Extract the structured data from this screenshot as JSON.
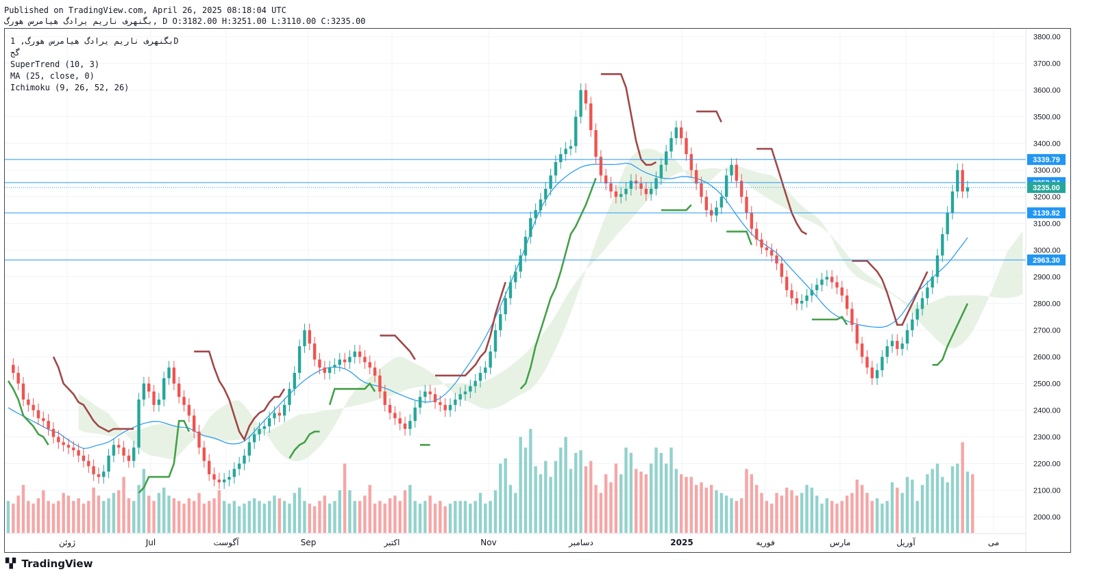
{
  "header": {
    "published": "Published on TradingView.com, April 26, 2025 08:18:04 UTC",
    "ohlc": "بگنهرف ناریم یرادگ هیامرس هورگ, D O:3182.00 H:3251.00 L:3110.00 C:3235.00"
  },
  "legend": {
    "symbol": "بگنهرف ناریم یرادگ هیامرس هورگ, 1D",
    "sub": "گج",
    "ind1": "SuperTrend (10, 3)",
    "ind2": "MA (25, close, 0)",
    "ind3": "Ichimoku (9, 26, 52, 26)"
  },
  "brand": {
    "name": "TradingView",
    "icon": "tradingview-logo-icon"
  },
  "colors": {
    "up": "#26a69a",
    "down": "#ef5350",
    "volUp": "#92d2cc",
    "volDown": "#f5a6a6",
    "supertrendUp": "#43a047",
    "supertrendDown": "#a04646",
    "ma": "#2196f3",
    "hline": "#2196f3",
    "cloudGreen": "#e4f1e1",
    "cloudRed": "#fde3e3"
  },
  "chart_data": {
    "type": "candlestick",
    "title": "",
    "yaxis": {
      "ticks": [
        2000,
        2100,
        2200,
        2300,
        2400,
        2500,
        2600,
        2700,
        2800,
        2900,
        3000,
        3100,
        3200,
        3300,
        3400,
        3500,
        3600,
        3700,
        3800
      ],
      "range": [
        1940,
        3830
      ]
    },
    "xaxis": {
      "labels": [
        "ژوئن",
        "Jul",
        "آگوست",
        "Sep",
        "اکتبر",
        "Nov",
        "دسامبر",
        "2025",
        "فوریه",
        "مارس",
        "آوریل",
        "می"
      ]
    },
    "price_lines": [
      {
        "value": 3339.79,
        "label": "3339.79"
      },
      {
        "value": 3253.24,
        "label": "3253.24"
      },
      {
        "value": 3235.0,
        "label": "3235.00",
        "current": true
      },
      {
        "value": 3139.82,
        "label": "3139.82"
      },
      {
        "value": 2963.3,
        "label": "2963.30"
      }
    ],
    "close_path": [
      2570,
      2540,
      2500,
      2440,
      2420,
      2400,
      2370,
      2360,
      2330,
      2300,
      2280,
      2270,
      2260,
      2250,
      2230,
      2210,
      2190,
      2160,
      2150,
      2170,
      2230,
      2270,
      2260,
      2230,
      2210,
      2260,
      2440,
      2500,
      2470,
      2420,
      2440,
      2520,
      2560,
      2500,
      2450,
      2420,
      2380,
      2320,
      2260,
      2210,
      2160,
      2140,
      2130,
      2140,
      2150,
      2180,
      2200,
      2230,
      2280,
      2310,
      2330,
      2340,
      2370,
      2390,
      2380,
      2420,
      2480,
      2540,
      2640,
      2700,
      2650,
      2590,
      2560,
      2540,
      2560,
      2570,
      2590,
      2580,
      2600,
      2620,
      2600,
      2580,
      2560,
      2530,
      2470,
      2420,
      2390,
      2370,
      2350,
      2330,
      2360,
      2410,
      2450,
      2470,
      2460,
      2430,
      2420,
      2400,
      2420,
      2440,
      2460,
      2470,
      2490,
      2510,
      2540,
      2560,
      2620,
      2700,
      2760,
      2820,
      2880,
      2920,
      2980,
      3050,
      3120,
      3150,
      3190,
      3230,
      3280,
      3330,
      3360,
      3380,
      3390,
      3500,
      3600,
      3550,
      3450,
      3350,
      3280,
      3250,
      3220,
      3200,
      3210,
      3230,
      3260,
      3250,
      3230,
      3210,
      3230,
      3270,
      3320,
      3370,
      3420,
      3460,
      3420,
      3360,
      3300,
      3250,
      3200,
      3150,
      3130,
      3160,
      3200,
      3280,
      3320,
      3260,
      3200,
      3140,
      3080,
      3040,
      3010,
      3000,
      2980,
      2950,
      2900,
      2850,
      2820,
      2800,
      2810,
      2830,
      2850,
      2870,
      2890,
      2900,
      2880,
      2860,
      2830,
      2780,
      2720,
      2650,
      2600,
      2560,
      2520,
      2550,
      2600,
      2640,
      2660,
      2630,
      2650,
      2700,
      2740,
      2780,
      2820,
      2860,
      2900,
      2980,
      3060,
      3140,
      3220,
      3300,
      3220,
      3235
    ],
    "volume_path": [
      2060,
      2050,
      2080,
      2120,
      2060,
      2050,
      2070,
      2100,
      2060,
      2050,
      2060,
      2090,
      2080,
      2060,
      2070,
      2050,
      2060,
      2110,
      2080,
      2060,
      2070,
      2090,
      2100,
      2150,
      2070,
      2060,
      2120,
      2180,
      2080,
      2060,
      2090,
      2110,
      2080,
      2070,
      2060,
      2050,
      2070,
      2060,
      2090,
      2050,
      2060,
      2070,
      2100,
      2060,
      2050,
      2060,
      2040,
      2050,
      2060,
      2070,
      2060,
      2050,
      2060,
      2080,
      2070,
      2060,
      2050,
      2090,
      2110,
      2060,
      2050,
      2040,
      2060,
      2080,
      2050,
      2060,
      2100,
      2200,
      2100,
      2060,
      2060,
      2080,
      2120,
      2050,
      2060,
      2050,
      2070,
      2080,
      2060,
      2100,
      2120,
      2060,
      2050,
      2060,
      2080,
      2050,
      2060,
      2040,
      2050,
      2060,
      2060,
      2060,
      2050,
      2060,
      2090,
      2050,
      2060,
      2100,
      2200,
      2220,
      2120,
      2090,
      2300,
      2260,
      2330,
      2190,
      2160,
      2210,
      2150,
      2210,
      2260,
      2300,
      2180,
      2240,
      2250,
      2190,
      2210,
      2120,
      2090,
      2160,
      2130,
      2200,
      2160,
      2260,
      2240,
      2180,
      2170,
      2160,
      2200,
      2260,
      2240,
      2200,
      2260,
      2180,
      2160,
      2150,
      2150,
      2120,
      2130,
      2110,
      2120,
      2100,
      2090,
      2080,
      2070,
      2060,
      2070,
      2180,
      2160,
      2120,
      2090,
      2060,
      2050,
      2090,
      2080,
      2110,
      2100,
      2080,
      2090,
      2120,
      2110,
      2080,
      2050,
      2070,
      2060,
      2050,
      2060,
      2080,
      2090,
      2140,
      2120,
      2090,
      2060,
      2070,
      2050,
      2060,
      2130,
      2110,
      2090,
      2150,
      2140,
      2060,
      2120,
      2160,
      2180,
      2200,
      2150,
      2130,
      2190,
      2200,
      2280,
      2170,
      2160
    ]
  }
}
